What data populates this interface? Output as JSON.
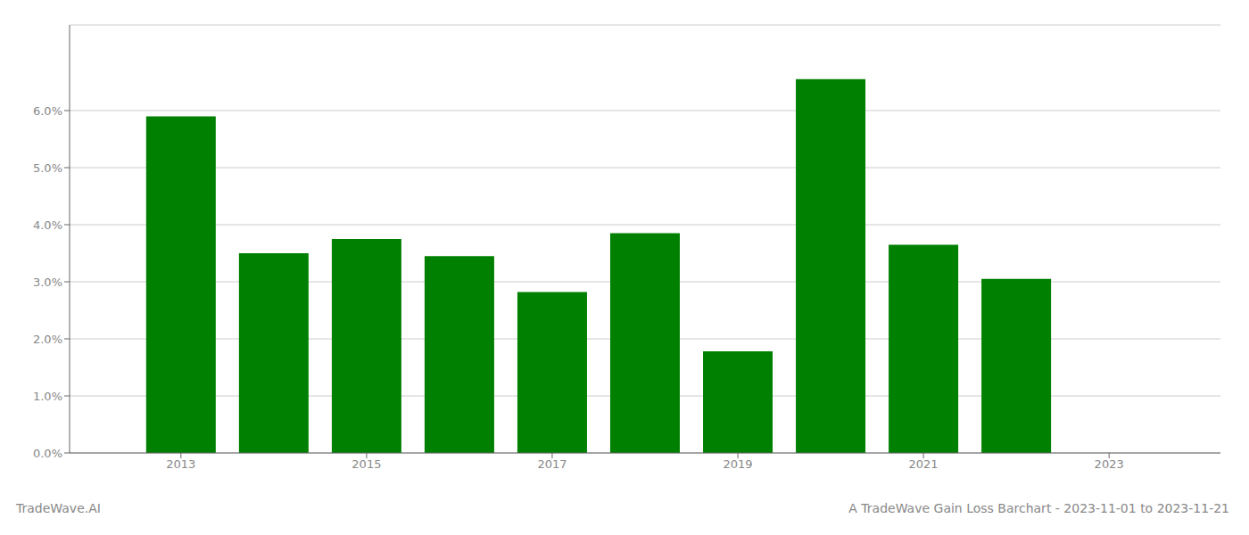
{
  "chart_data": {
    "type": "bar",
    "title": "A TradeWave Gain Loss Barchart - 2023-11-01 to 2023-11-21",
    "annotations": [
      "TradeWave.AI"
    ],
    "x": [
      2013,
      2014,
      2015,
      2016,
      2017,
      2018,
      2019,
      2020,
      2021,
      2022
    ],
    "values": [
      0.059,
      0.035,
      0.0375,
      0.0345,
      0.0282,
      0.0385,
      0.0178,
      0.0655,
      0.0365,
      0.0305
    ],
    "color": "#008000",
    "xlim": [
      2011.8,
      2024.2
    ],
    "xticks": [
      2013,
      2015,
      2017,
      2019,
      2021,
      2023
    ],
    "ylim": [
      0,
      0.075
    ],
    "yticks": [
      {
        "value": 0.0,
        "label": "0.0%"
      },
      {
        "value": 0.01,
        "label": "1.0%"
      },
      {
        "value": 0.02,
        "label": "2.0%"
      },
      {
        "value": 0.03,
        "label": "3.0%"
      },
      {
        "value": 0.04,
        "label": "4.0%"
      },
      {
        "value": 0.05,
        "label": "5.0%"
      },
      {
        "value": 0.06,
        "label": "6.0%"
      }
    ],
    "grid": true
  }
}
